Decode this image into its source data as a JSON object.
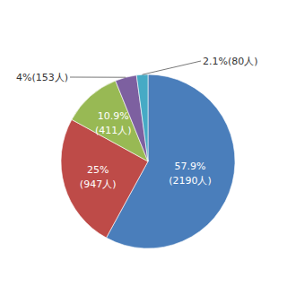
{
  "chart_data": {
    "type": "pie",
    "values": [
      57.9,
      25,
      10.9,
      4,
      2.1
    ],
    "value_labels": [
      "57.9%",
      "25%",
      "10.9%",
      "4%",
      "2.1%"
    ],
    "counts": [
      2190,
      947,
      411,
      153,
      80
    ],
    "count_labels": [
      "(2190人)",
      "(947人)",
      "(411人)",
      "(153人)",
      "(80人)"
    ],
    "colors": [
      "#4a7ebb",
      "#be4b48",
      "#98b954",
      "#7d60a0",
      "#46aac5"
    ],
    "data_labels": true
  }
}
